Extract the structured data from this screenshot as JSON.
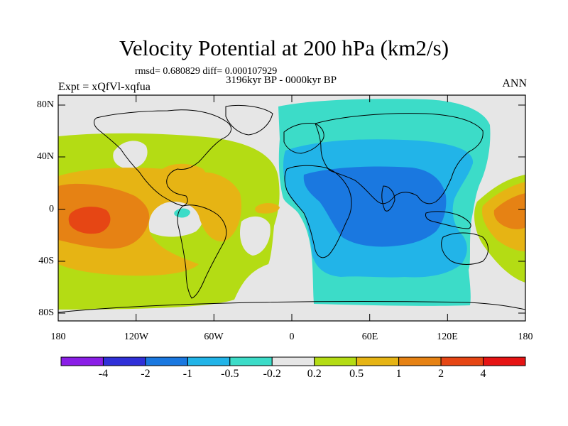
{
  "title": "Velocity Potential at 200 hPa (km2/s)",
  "stats_text": "rmsd= 0.680829 diff= 0.000107929",
  "period_text": "3196kyr BP - 0000kyr BP",
  "experiment_text": "Expt = xQfVl-xqfua",
  "season_text": "ANN",
  "lat_ticks": [
    "80N",
    "40N",
    "0",
    "40S",
    "80S"
  ],
  "lon_ticks": [
    "180",
    "120W",
    "60W",
    "0",
    "60E",
    "120E",
    "180"
  ],
  "colorbar": {
    "labels": [
      "-4",
      "-2",
      "-1",
      "-0.5",
      "-0.2",
      "0.2",
      "0.5",
      "1",
      "2",
      "4"
    ],
    "colors": [
      "#8a1ee6",
      "#3030d8",
      "#1a78e0",
      "#22b4e8",
      "#3cdcc8",
      "#e6e6e6",
      "#b4dc14",
      "#e6b414",
      "#e68214",
      "#e64614",
      "#e61414"
    ]
  },
  "colors": {
    "land_outline": "#000000",
    "background": "#e6e6e6"
  }
}
